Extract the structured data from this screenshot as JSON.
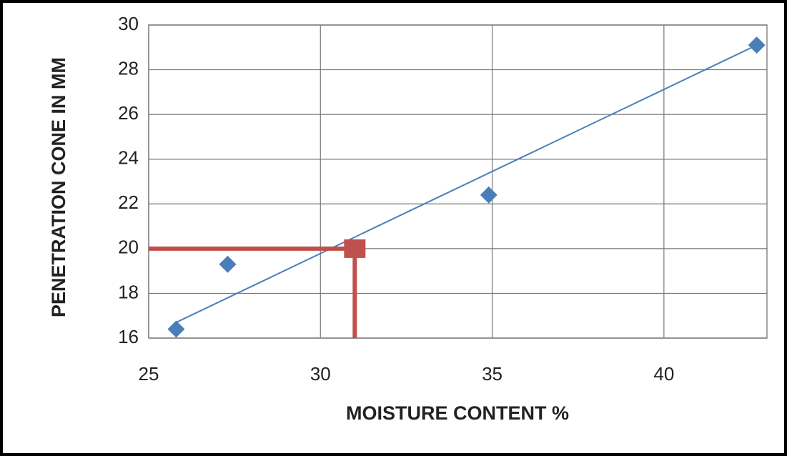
{
  "chart_data": {
    "type": "scatter",
    "x_label": "MOISTURE CONTENT %",
    "y_label": "PENETRATION CONE IN MM",
    "xlim": [
      25,
      43
    ],
    "ylim": [
      16,
      30
    ],
    "xticks": [
      25,
      30,
      35,
      40
    ],
    "yticks": [
      16,
      18,
      20,
      22,
      24,
      26,
      28,
      30
    ],
    "grid": true,
    "series": [
      {
        "color": "#4a7ebb",
        "x": [
          25.8,
          27.3,
          34.9,
          42.7
        ],
        "values": [
          16.4,
          19.3,
          22.4,
          29.1
        ]
      }
    ],
    "trendline": {
      "color": "#4a7ebb",
      "x": [
        25.8,
        42.7
      ],
      "values": [
        16.7,
        29.1
      ]
    },
    "marker": {
      "color": "#c0504d",
      "x": 31,
      "value": 20
    }
  }
}
